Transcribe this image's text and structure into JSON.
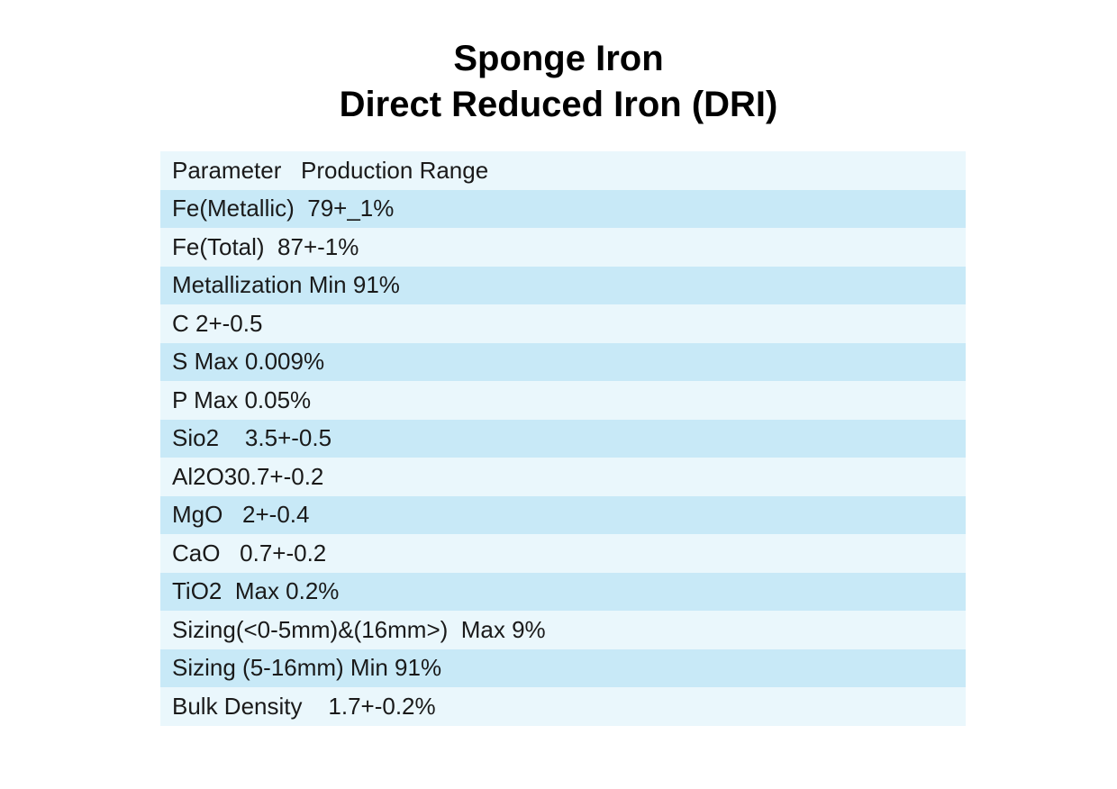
{
  "colors": {
    "row_light": "#EAF7FC",
    "row_dark": "#C8E9F7",
    "title_text": "#000000",
    "body_text": "#1A1A1A"
  },
  "title": {
    "line1": "Sponge Iron",
    "line2": "Direct Reduced Iron (DRI)"
  },
  "table": {
    "header": {
      "parameter": "Parameter",
      "range": "Production Range",
      "text": "Parameter   Production Range"
    },
    "rows": [
      {
        "parameter": "Fe(Metallic)",
        "value": "79+_1%",
        "text": "Fe(Metallic)  79+_1%"
      },
      {
        "parameter": "Fe(Total)",
        "value": "87+-1%",
        "text": "Fe(Total)  87+-1%"
      },
      {
        "parameter": "Metallization",
        "value": "Min 91%",
        "text": "Metallization Min 91%"
      },
      {
        "parameter": "C",
        "value": "2+-0.5",
        "text": "C 2+-0.5"
      },
      {
        "parameter": "S",
        "value": "Max 0.009%",
        "text": "S Max 0.009%"
      },
      {
        "parameter": "P",
        "value": "Max 0.05%",
        "text": "P Max 0.05%"
      },
      {
        "parameter": "Sio2",
        "value": "3.5+-0.5",
        "text": "Sio2    3.5+-0.5"
      },
      {
        "parameter": "Al2O3",
        "value": "0.7+-0.2",
        "text": "Al2O30.7+-0.2"
      },
      {
        "parameter": "MgO",
        "value": "2+-0.4",
        "text": "MgO   2+-0.4"
      },
      {
        "parameter": "CaO",
        "value": "0.7+-0.2",
        "text": "CaO   0.7+-0.2"
      },
      {
        "parameter": "TiO2",
        "value": "Max 0.2%",
        "text": "TiO2  Max 0.2%"
      },
      {
        "parameter": "Sizing(<0-5mm)&(16mm>)",
        "value": "Max 9%",
        "text": "Sizing(<0-5mm)&(16mm>)  Max 9%"
      },
      {
        "parameter": "Sizing (5-16mm)",
        "value": "Min 91%",
        "text": "Sizing (5-16mm) Min 91%"
      },
      {
        "parameter": "Bulk Density",
        "value": "1.7+-0.2%",
        "text": "Bulk Density    1.7+-0.2%"
      }
    ]
  }
}
